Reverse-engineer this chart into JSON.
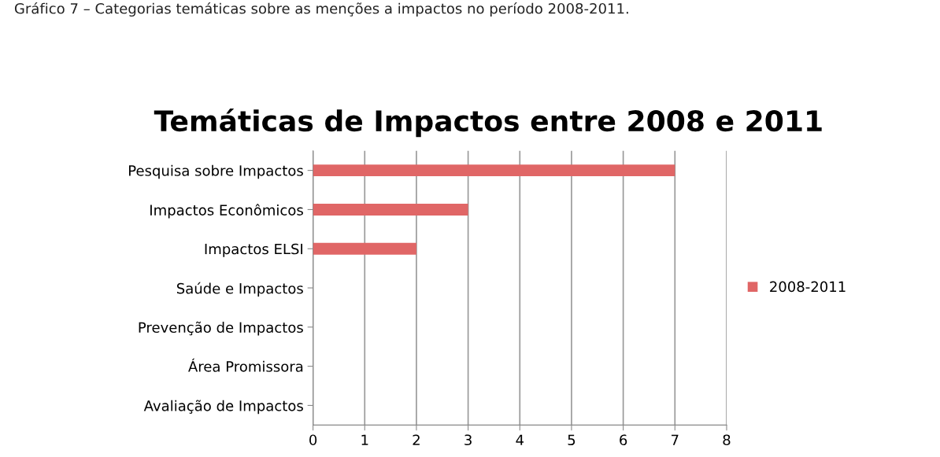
{
  "chart_data": {
    "type": "bar",
    "orientation": "horizontal",
    "title": "Temáticas de Impactos entre 2008 e 2011",
    "annotations": [
      "Gráfico 7 – Categorias temáticas sobre as menções a impactos no período 2008-2011."
    ],
    "categories": [
      "Pesquisa sobre Impactos",
      "Impactos Econômicos",
      "Impactos ELSI",
      "Saúde e Impactos",
      "Prevenção de Impactos",
      "Área Promissora",
      "Avaliação de Impactos"
    ],
    "series": [
      {
        "name": "2008-2011",
        "color": "#e06666",
        "values": [
          7,
          3,
          2,
          0,
          0,
          0,
          0
        ]
      }
    ],
    "xlim": [
      0,
      8
    ],
    "xticks": [
      0,
      1,
      2,
      3,
      4,
      5,
      6,
      7,
      8
    ],
    "grid": "x",
    "legend": "right"
  }
}
